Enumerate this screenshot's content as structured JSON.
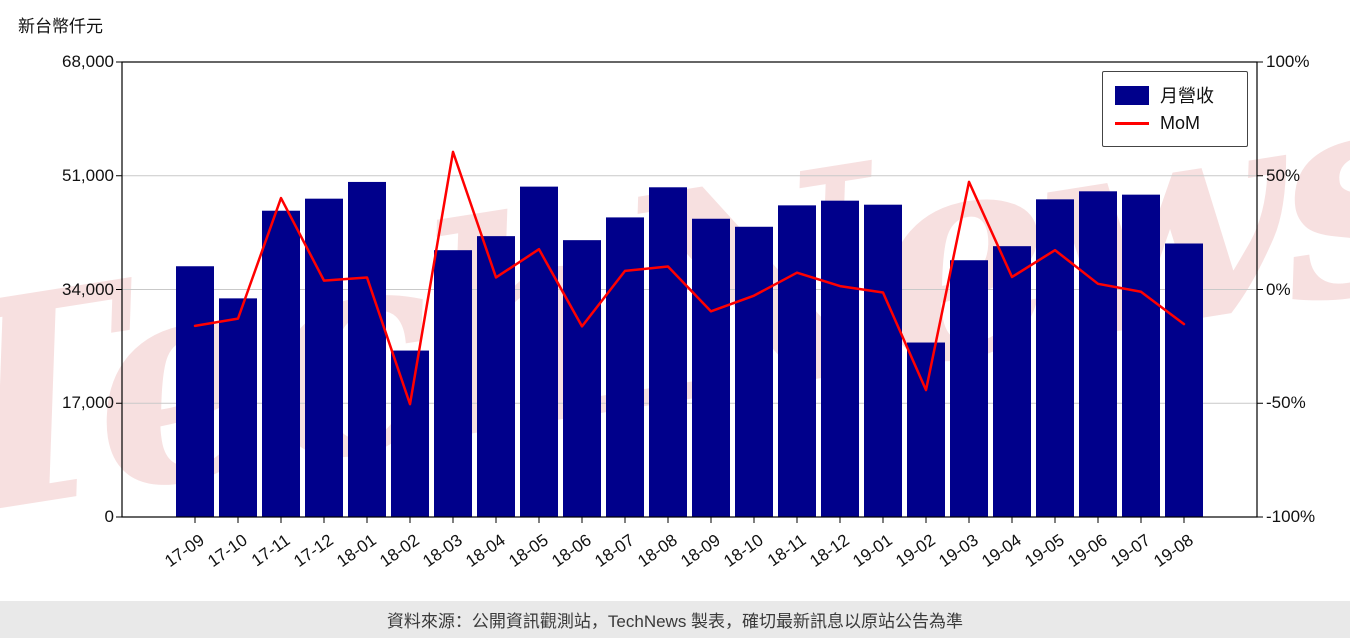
{
  "page": {
    "watermark": "TechNews",
    "footer": "資料來源：公開資訊觀測站，TechNews 製表，確切最新訊息以原站公告為準"
  },
  "chart_data": {
    "type": "combo-bar-line",
    "title": "",
    "categories": [
      "17-09",
      "17-10",
      "17-11",
      "17-12",
      "18-01",
      "18-02",
      "18-03",
      "18-04",
      "18-05",
      "18-06",
      "18-07",
      "18-08",
      "18-09",
      "18-10",
      "18-11",
      "18-12",
      "19-01",
      "19-02",
      "19-03",
      "19-04",
      "19-05",
      "19-06",
      "19-07",
      "19-08"
    ],
    "series": [
      {
        "name": "月營收",
        "type": "bar",
        "axis": "left",
        "color": "#00008b",
        "unit": "新台幣仟元",
        "values": [
          37400,
          32600,
          45700,
          47500,
          50000,
          24800,
          39800,
          41900,
          49300,
          41300,
          44700,
          49200,
          44500,
          43300,
          46500,
          47200,
          46600,
          26000,
          38300,
          40400,
          47400,
          48600,
          48100,
          40800
        ]
      },
      {
        "name": "MoM",
        "type": "line",
        "axis": "right",
        "color": "#ff0000",
        "unit": "%",
        "values": [
          -16.0,
          -12.8,
          40.2,
          3.9,
          5.3,
          -50.4,
          60.5,
          5.3,
          17.7,
          -16.2,
          8.2,
          10.1,
          -9.6,
          -2.7,
          7.4,
          1.5,
          -1.3,
          -44.2,
          47.3,
          5.5,
          17.3,
          2.5,
          -1.0,
          -15.2
        ]
      }
    ],
    "left_axis": {
      "title": "新台幣仟元",
      "min": 0,
      "max": 68000,
      "values": [
        0,
        17000,
        34000,
        51000,
        68000
      ],
      "labels": [
        "0",
        "17,000",
        "34,000",
        "51,000",
        "68,000"
      ]
    },
    "right_axis": {
      "min": -100,
      "max": 100,
      "values": [
        -100,
        -50,
        0,
        50,
        100
      ],
      "labels": [
        "-100%",
        "-50%",
        "0%",
        "50%",
        "100%"
      ]
    },
    "grid": true,
    "legend_position": "upper-right"
  }
}
